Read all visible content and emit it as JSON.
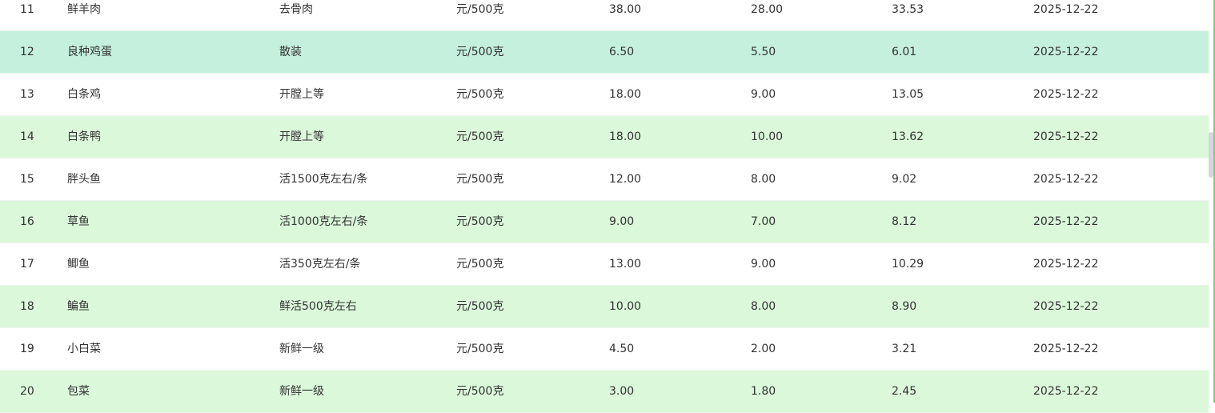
{
  "table": {
    "hover_row_index": 1,
    "colors": {
      "even_row": "#dbf8da",
      "hover_row": "#c5f0dd",
      "border": "#7ccf7c"
    },
    "rows": [
      [
        "11",
        "鲜羊肉",
        "去骨肉",
        "元/500克",
        "38.00",
        "28.00",
        "33.53",
        "2025-12-22"
      ],
      [
        "12",
        "良种鸡蛋",
        "散装",
        "元/500克",
        "6.50",
        "5.50",
        "6.01",
        "2025-12-22"
      ],
      [
        "13",
        "白条鸡",
        "开膛上等",
        "元/500克",
        "18.00",
        "9.00",
        "13.05",
        "2025-12-22"
      ],
      [
        "14",
        "白条鸭",
        "开膛上等",
        "元/500克",
        "18.00",
        "10.00",
        "13.62",
        "2025-12-22"
      ],
      [
        "15",
        "胖头鱼",
        "活1500克左右/条",
        "元/500克",
        "12.00",
        "8.00",
        "9.02",
        "2025-12-22"
      ],
      [
        "16",
        "草鱼",
        "活1000克左右/条",
        "元/500克",
        "9.00",
        "7.00",
        "8.12",
        "2025-12-22"
      ],
      [
        "17",
        "鲫鱼",
        "活350克左右/条",
        "元/500克",
        "13.00",
        "9.00",
        "10.29",
        "2025-12-22"
      ],
      [
        "18",
        "鳊鱼",
        "鲜活500克左右",
        "元/500克",
        "10.00",
        "8.00",
        "8.90",
        "2025-12-22"
      ],
      [
        "19",
        "小白菜",
        "新鲜一级",
        "元/500克",
        "4.50",
        "2.00",
        "3.21",
        "2025-12-22"
      ],
      [
        "20",
        "包菜",
        "新鲜一级",
        "元/500克",
        "3.00",
        "1.80",
        "2.45",
        "2025-12-22"
      ]
    ]
  }
}
